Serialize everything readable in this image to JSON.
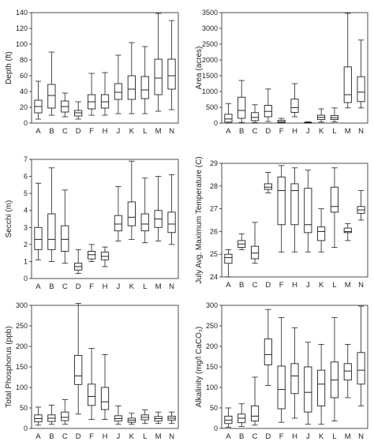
{
  "chart_data": [
    {
      "type": "boxplot",
      "ylabel": "Depth (ft)",
      "ylim": [
        0,
        140
      ],
      "yticks": [
        0,
        20,
        40,
        60,
        80,
        100,
        120,
        140
      ],
      "yticklabels": [
        "0",
        "20",
        "40",
        "60",
        "80",
        "100",
        "120",
        "140"
      ],
      "categories": [
        "A",
        "B",
        "C",
        "D",
        "F",
        "H",
        "J",
        "K",
        "L",
        "M",
        "N"
      ],
      "boxes": [
        {
          "min": 5,
          "q1": 13,
          "median": 21,
          "q3": 29,
          "max": 53
        },
        {
          "min": 10,
          "q1": 19,
          "median": 35,
          "q3": 49,
          "max": 90
        },
        {
          "min": 8,
          "q1": 14,
          "median": 21,
          "q3": 28,
          "max": 38
        },
        {
          "min": 5,
          "q1": 9,
          "median": 13,
          "q3": 16,
          "max": 27
        },
        {
          "min": 10,
          "q1": 18,
          "median": 27,
          "q3": 36,
          "max": 63
        },
        {
          "min": 10,
          "q1": 19,
          "median": 27,
          "q3": 36,
          "max": 64
        },
        {
          "min": 12,
          "q1": 30,
          "median": 39,
          "q3": 50,
          "max": 86
        },
        {
          "min": 12,
          "q1": 30,
          "median": 43,
          "q3": 60,
          "max": 102
        },
        {
          "min": 12,
          "q1": 31,
          "median": 42,
          "q3": 59,
          "max": 97
        },
        {
          "min": 15,
          "q1": 36,
          "median": 57,
          "q3": 81,
          "max": 139
        },
        {
          "min": 17,
          "q1": 43,
          "median": 60,
          "q3": 81,
          "max": 130
        }
      ]
    },
    {
      "type": "boxplot",
      "ylabel": "Area (acres)",
      "ylim": [
        0,
        3500
      ],
      "yticks": [
        0,
        500,
        1000,
        1500,
        2000,
        2500,
        3000,
        3500
      ],
      "yticklabels": [
        "0",
        "500",
        "1000",
        "1500",
        "2000",
        "2500",
        "3000",
        "3500"
      ],
      "categories": [
        "A",
        "B",
        "C",
        "D",
        "F",
        "H",
        "J",
        "K",
        "L",
        "M",
        "N"
      ],
      "boxes": [
        {
          "min": 0,
          "q1": 30,
          "median": 130,
          "q3": 280,
          "max": 620
        },
        {
          "min": 20,
          "q1": 150,
          "median": 400,
          "q3": 820,
          "max": 1350
        },
        {
          "min": 20,
          "q1": 80,
          "median": 180,
          "q3": 330,
          "max": 580
        },
        {
          "min": 50,
          "q1": 200,
          "median": 370,
          "q3": 560,
          "max": 1080
        },
        {
          "min": 0,
          "q1": 10,
          "median": 40,
          "q3": 90,
          "max": 150
        },
        {
          "min": 200,
          "q1": 340,
          "median": 490,
          "q3": 760,
          "max": 1250
        },
        {
          "min": 0,
          "q1": 5,
          "median": 15,
          "q3": 25,
          "max": 40
        },
        {
          "min": 30,
          "q1": 110,
          "median": 180,
          "q3": 250,
          "max": 450
        },
        {
          "min": 40,
          "q1": 110,
          "median": 170,
          "q3": 240,
          "max": 480
        },
        {
          "min": 480,
          "q1": 650,
          "median": 900,
          "q3": 1780,
          "max": 3480
        },
        {
          "min": 480,
          "q1": 680,
          "median": 980,
          "q3": 1470,
          "max": 2630
        }
      ]
    },
    {
      "type": "boxplot",
      "ylabel": "Secchi (m)",
      "ylim": [
        0,
        7
      ],
      "yticks": [
        0,
        1,
        2,
        3,
        4,
        5,
        6,
        7
      ],
      "yticklabels": [
        "0",
        "1",
        "2",
        "3",
        "4",
        "5",
        "6",
        "7"
      ],
      "categories": [
        "A",
        "B",
        "C",
        "D",
        "F",
        "H",
        "J",
        "K",
        "L",
        "M",
        "N"
      ],
      "boxes": [
        {
          "min": 1.1,
          "q1": 1.7,
          "median": 2.3,
          "q3": 3.0,
          "max": 5.6
        },
        {
          "min": 1.0,
          "q1": 1.7,
          "median": 2.3,
          "q3": 3.8,
          "max": 6.5
        },
        {
          "min": 0.9,
          "q1": 1.6,
          "median": 2.3,
          "q3": 3.1,
          "max": 5.2
        },
        {
          "min": 0.3,
          "q1": 0.5,
          "median": 0.7,
          "q3": 0.9,
          "max": 1.7
        },
        {
          "min": 1.0,
          "q1": 1.15,
          "median": 1.4,
          "q3": 1.6,
          "max": 2.0
        },
        {
          "min": 0.7,
          "q1": 1.1,
          "median": 1.3,
          "q3": 1.55,
          "max": 1.85
        },
        {
          "min": 2.2,
          "q1": 2.8,
          "median": 3.2,
          "q3": 3.7,
          "max": 5.4
        },
        {
          "min": 2.3,
          "q1": 3.1,
          "median": 3.6,
          "q3": 4.5,
          "max": 6.9
        },
        {
          "min": 2.1,
          "q1": 2.8,
          "median": 3.2,
          "q3": 3.8,
          "max": 5.9
        },
        {
          "min": 2.2,
          "q1": 3.0,
          "median": 3.5,
          "q3": 4.0,
          "max": 6.0
        },
        {
          "min": 2.0,
          "q1": 2.7,
          "median": 3.2,
          "q3": 3.9,
          "max": 6.1
        }
      ]
    },
    {
      "type": "boxplot",
      "ylabel": "July Avg. Maximum Temperature (C)",
      "ylim": [
        24,
        29
      ],
      "yticks": [
        24,
        25,
        26,
        27,
        28,
        29
      ],
      "yticklabels": [
        "24",
        "25",
        "26",
        "27",
        "28",
        "29"
      ],
      "categories": [
        "A",
        "B",
        "C",
        "D",
        "F",
        "H",
        "J",
        "K",
        "L",
        "M",
        "N"
      ],
      "boxes": [
        {
          "min": 24.0,
          "q1": 24.6,
          "median": 24.85,
          "q3": 25.0,
          "max": 25.2
        },
        {
          "min": 25.2,
          "q1": 25.3,
          "median": 25.45,
          "q3": 25.6,
          "max": 25.9
        },
        {
          "min": 24.6,
          "q1": 24.8,
          "median": 25.05,
          "q3": 25.35,
          "max": 26.4
        },
        {
          "min": 27.7,
          "q1": 27.85,
          "median": 27.95,
          "q3": 28.1,
          "max": 28.6
        },
        {
          "min": 25.1,
          "q1": 26.3,
          "median": 27.8,
          "q3": 28.4,
          "max": 28.9
        },
        {
          "min": 25.1,
          "q1": 26.3,
          "median": 27.8,
          "q3": 28.1,
          "max": 28.8
        },
        {
          "min": 25.1,
          "q1": 25.95,
          "median": 26.3,
          "q3": 27.9,
          "max": 28.7
        },
        {
          "min": 25.1,
          "q1": 25.6,
          "median": 26.0,
          "q3": 26.2,
          "max": 27.0
        },
        {
          "min": 25.3,
          "q1": 26.85,
          "median": 27.1,
          "q3": 27.95,
          "max": 28.8
        },
        {
          "min": 25.6,
          "q1": 25.95,
          "median": 26.0,
          "q3": 26.15,
          "max": 26.35
        },
        {
          "min": 26.5,
          "q1": 26.8,
          "median": 26.95,
          "q3": 27.1,
          "max": 27.8
        }
      ]
    },
    {
      "type": "boxplot",
      "ylabel": "Total Phosphorus (ppb)",
      "ylim": [
        0,
        300
      ],
      "yticks": [
        0,
        50,
        100,
        150,
        200,
        250,
        300
      ],
      "yticklabels": [
        "0",
        "50",
        "100",
        "150",
        "200",
        "250",
        "300"
      ],
      "categories": [
        "A",
        "B",
        "C",
        "D",
        "F",
        "H",
        "J",
        "K",
        "L",
        "M",
        "N"
      ],
      "boxes": [
        {
          "min": 8,
          "q1": 16,
          "median": 24,
          "q3": 33,
          "max": 52
        },
        {
          "min": 10,
          "q1": 17,
          "median": 25,
          "q3": 33,
          "max": 57
        },
        {
          "min": 10,
          "q1": 19,
          "median": 27,
          "q3": 40,
          "max": 70
        },
        {
          "min": 35,
          "q1": 107,
          "median": 128,
          "q3": 178,
          "max": 305
        },
        {
          "min": 22,
          "q1": 56,
          "median": 78,
          "q3": 108,
          "max": 195
        },
        {
          "min": 22,
          "q1": 46,
          "median": 65,
          "q3": 100,
          "max": 180
        },
        {
          "min": 10,
          "q1": 18,
          "median": 24,
          "q3": 31,
          "max": 55
        },
        {
          "min": 10,
          "q1": 15,
          "median": 20,
          "q3": 25,
          "max": 37
        },
        {
          "min": 12,
          "q1": 21,
          "median": 27,
          "q3": 33,
          "max": 45
        },
        {
          "min": 12,
          "q1": 18,
          "median": 24,
          "q3": 29,
          "max": 40
        },
        {
          "min": 12,
          "q1": 20,
          "median": 25,
          "q3": 30,
          "max": 40
        }
      ]
    },
    {
      "type": "boxplot",
      "ylabel": "Alkalinity (mg/l CaCO₃)",
      "ylim": [
        0,
        300
      ],
      "yticks": [
        0,
        50,
        100,
        150,
        200,
        250,
        300
      ],
      "yticklabels": [
        "0",
        "50",
        "100",
        "150",
        "200",
        "250",
        "300"
      ],
      "categories": [
        "A",
        "B",
        "C",
        "D",
        "F",
        "H",
        "J",
        "K",
        "L",
        "M",
        "N"
      ],
      "boxes": [
        {
          "min": 3,
          "q1": 12,
          "median": 20,
          "q3": 30,
          "max": 50
        },
        {
          "min": 5,
          "q1": 14,
          "median": 25,
          "q3": 35,
          "max": 60
        },
        {
          "min": 8,
          "q1": 18,
          "median": 30,
          "q3": 55,
          "max": 125
        },
        {
          "min": 105,
          "q1": 155,
          "median": 180,
          "q3": 218,
          "max": 290
        },
        {
          "min": 15,
          "q1": 48,
          "median": 95,
          "q3": 152,
          "max": 270
        },
        {
          "min": 25,
          "q1": 85,
          "median": 128,
          "q3": 158,
          "max": 245
        },
        {
          "min": 10,
          "q1": 40,
          "median": 88,
          "q3": 150,
          "max": 210
        },
        {
          "min": 10,
          "q1": 55,
          "median": 108,
          "q3": 142,
          "max": 205
        },
        {
          "min": 18,
          "q1": 75,
          "median": 118,
          "q3": 162,
          "max": 270
        },
        {
          "min": 75,
          "q1": 118,
          "median": 140,
          "q3": 158,
          "max": 205
        },
        {
          "min": 55,
          "q1": 108,
          "median": 142,
          "q3": 185,
          "max": 298
        }
      ]
    }
  ],
  "colors": {
    "box_stroke": "#222222",
    "box_fill": "#ffffff",
    "axis": "#222222"
  }
}
